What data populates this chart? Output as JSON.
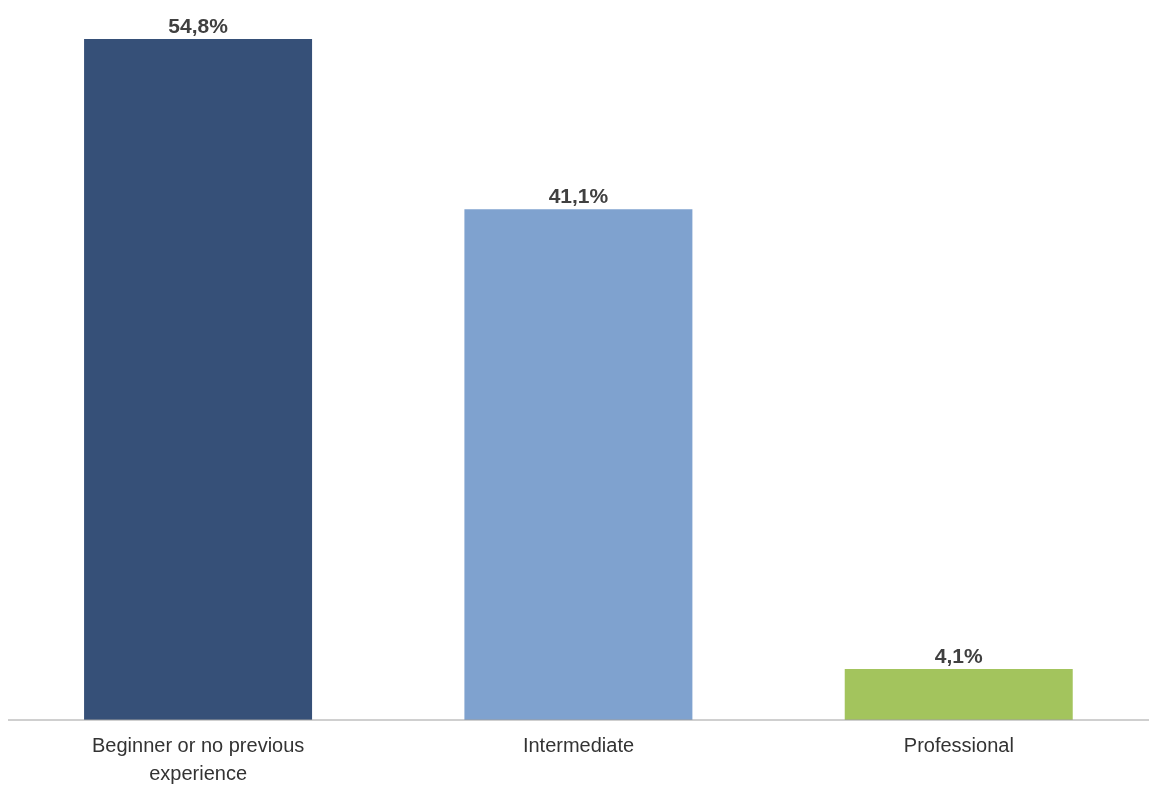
{
  "chart_data": {
    "type": "bar",
    "categories": [
      "Beginner or no previous experience",
      "Intermediate",
      "Professional"
    ],
    "values": [
      54.8,
      41.1,
      4.1
    ],
    "colors": [
      "#365078",
      "#7fa2cf",
      "#a3c45d"
    ],
    "value_labels": [
      "54,8%",
      "41,1%",
      "4,1%"
    ]
  }
}
